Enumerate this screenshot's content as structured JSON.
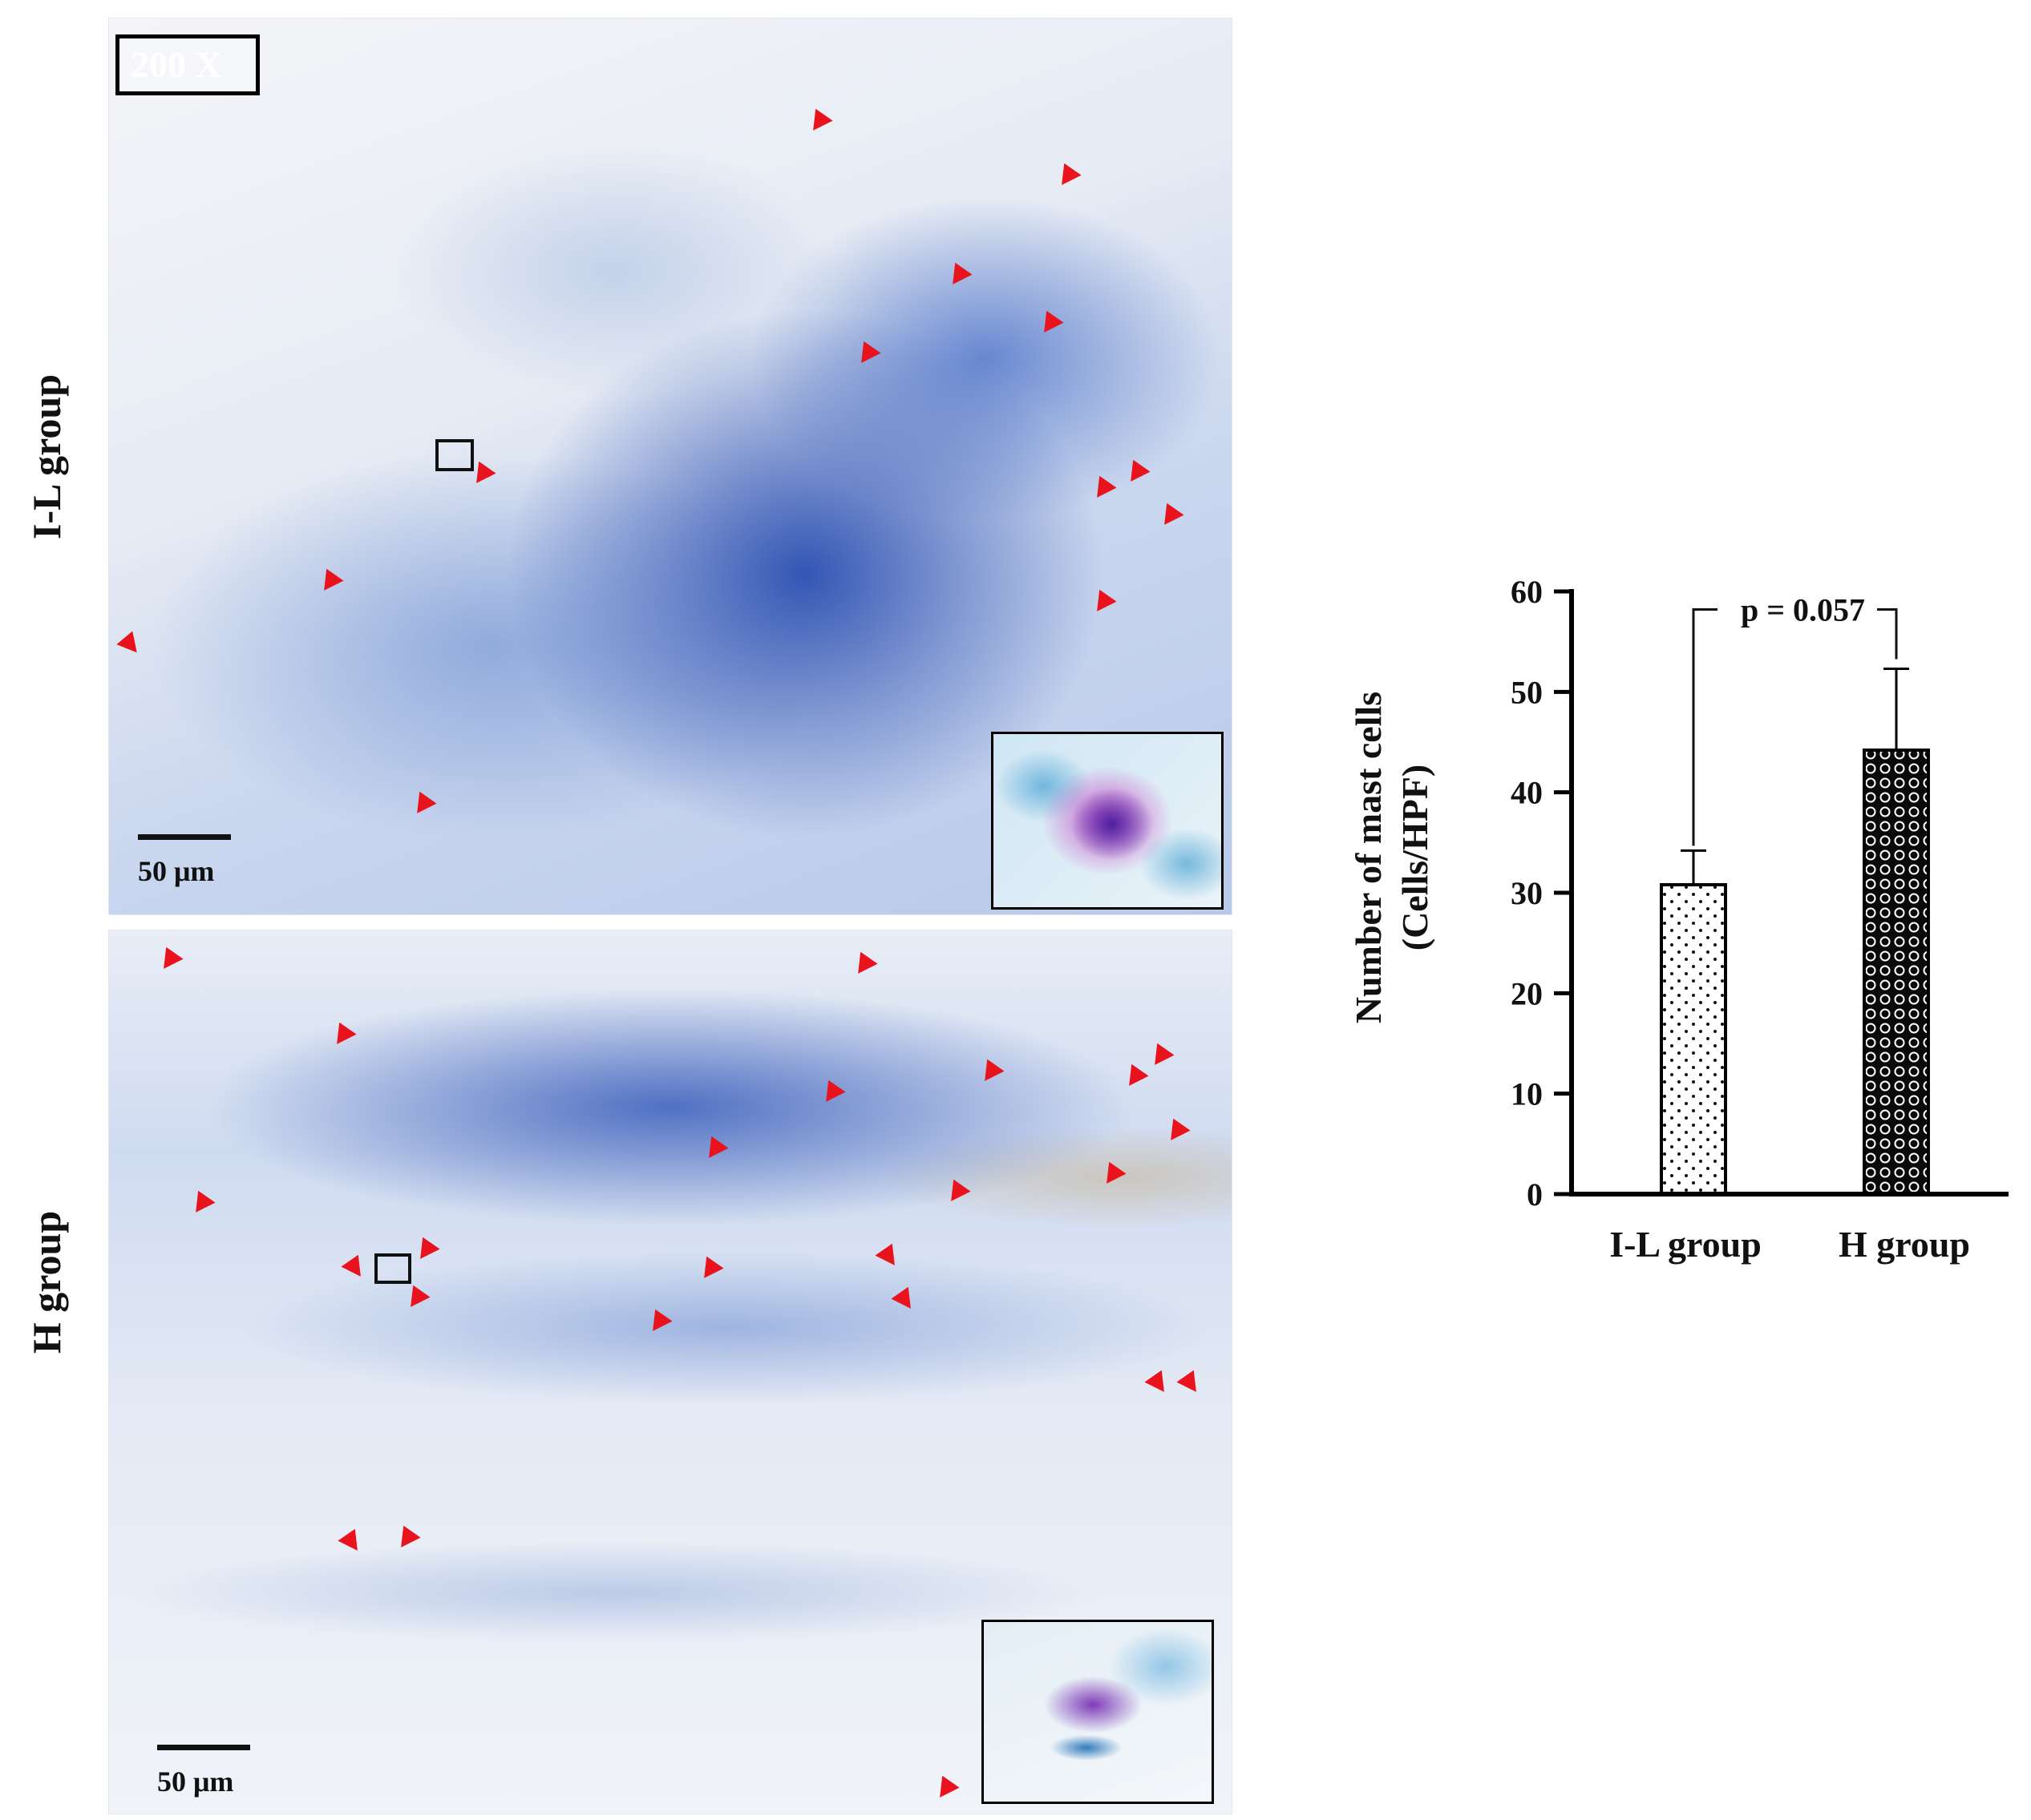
{
  "micrograph": {
    "magnification": "200 X",
    "scale_bar_label": "50 μm",
    "row_labels": [
      "I-L group",
      "H group"
    ]
  },
  "chart_data": {
    "type": "bar",
    "categories": [
      "I-L group",
      "H group"
    ],
    "values": [
      30.8,
      44.2
    ],
    "error_upper": [
      34.2,
      52.3
    ],
    "title": "",
    "xlabel": "",
    "ylabel": "Number of mast cells",
    "ylabel_units": "(Cells/HPF)",
    "ylim": [
      0,
      60
    ],
    "yticks": [
      0,
      10,
      20,
      30,
      40,
      50,
      60
    ],
    "annotation": "p = 0.057",
    "bar_patterns": [
      "dotted",
      "circles-dark"
    ],
    "grid": false
  }
}
